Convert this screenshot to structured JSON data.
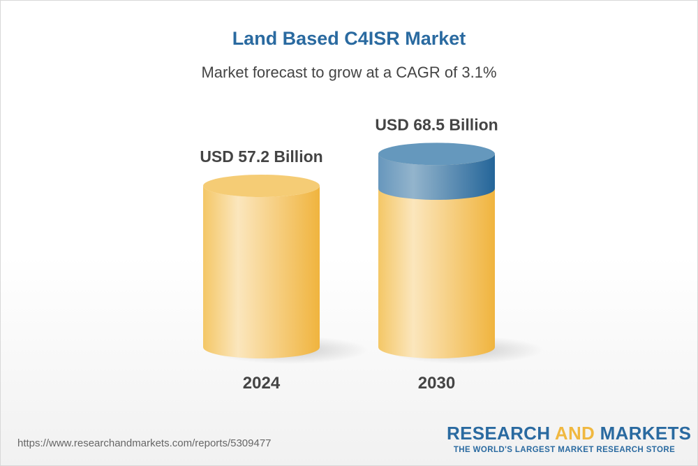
{
  "chart_data": {
    "type": "bar",
    "title": "Land Based C4ISR Market",
    "subtitle": "Market forecast to grow at a CAGR of 3.1%",
    "categories": [
      "2024",
      "2030"
    ],
    "values": [
      57.2,
      68.5
    ],
    "data_labels": [
      "USD 57.2 Billion",
      "USD 68.5 Billion"
    ],
    "style": "3d-cylinder",
    "colors": {
      "base": "#f2bd4e",
      "growth": "#2a6aa0",
      "title": "#2a6aa0"
    }
  },
  "footer": {
    "url": "https://www.researchandmarkets.com/reports/5309477",
    "logo_part1": "RESEARCH ",
    "logo_part2": "AND",
    "logo_part3": " MARKETS",
    "tagline": "THE WORLD'S LARGEST MARKET RESEARCH STORE"
  }
}
